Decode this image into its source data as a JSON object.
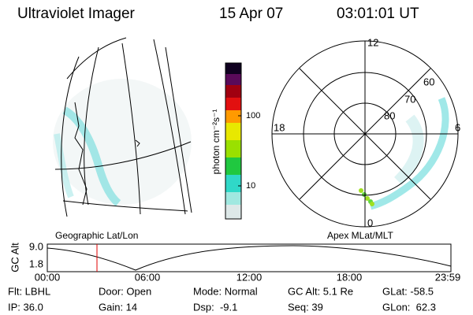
{
  "header": {
    "title": "Ultraviolet Imager",
    "date": "15 Apr 07",
    "time": "03:01:01 UT"
  },
  "colorbar": {
    "label": "photon cm⁻²s⁻¹",
    "ticks": [
      "100",
      "10"
    ]
  },
  "polar": {
    "lat_labels": [
      "80",
      "70",
      "60"
    ],
    "mlt_labels": [
      "12",
      "18",
      "6",
      "0"
    ]
  },
  "panel_labels": {
    "map": "Geographic Lat/Lon",
    "polar": "Apex MLat/MLT"
  },
  "timeline": {
    "axis_label": "GC Alt",
    "alt_labels": [
      "9.0",
      "1.8"
    ],
    "time_labels": [
      "00:00",
      "06:00",
      "12:00",
      "18:00",
      "23:59"
    ]
  },
  "footer": {
    "rows": [
      [
        "Flt: LBHL",
        "Door: Open",
        "Mode: Normal",
        "GC Alt: 5.1 Re",
        "GLat: -58.5"
      ],
      [
        "IP: 36.0",
        "Gain: 14",
        "Dsp:  -9.1",
        "Seq: 39",
        "GLon:  62.3"
      ]
    ]
  }
}
